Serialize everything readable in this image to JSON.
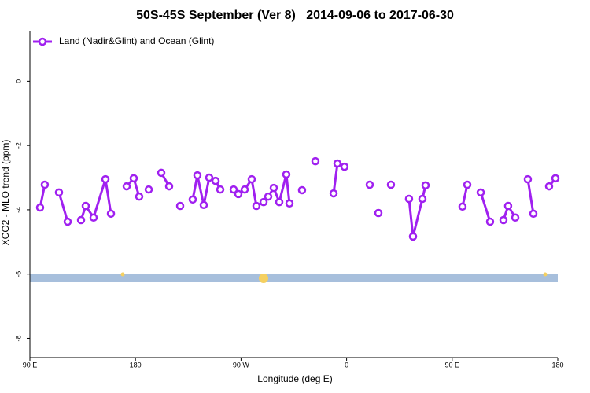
{
  "chart_data": {
    "type": "line",
    "title": "50S-45S September (Ver 8)   2014-09-06 to 2017-06-30",
    "x_label": "Longitude (deg E)",
    "y_label": "XCO2 - MLO trend (ppm)",
    "xlim": [
      90,
      540
    ],
    "ylim": [
      -8.6,
      1.55
    ],
    "xticks": [
      {
        "value": 90,
        "label": "90 E"
      },
      180,
      {
        "value": 270,
        "label": "90 W"
      },
      {
        "value": 360,
        "label": "0"
      },
      {
        "value": 450,
        "label": "90 E"
      },
      {
        "value": 540,
        "label": "180"
      }
    ],
    "yticks": [
      0,
      -2,
      -4,
      -6,
      -8
    ],
    "legend": "top-left",
    "x": [
      98.7,
      102.7,
      null,
      114.8,
      122.2,
      null,
      133.6,
      137.6,
      144.3,
      154.4,
      159.1,
      null,
      172.5,
      178.5,
      183.2,
      null,
      191.3,
      null,
      202.0,
      208.7,
      null,
      218.1,
      null,
      228.8,
      232.8,
      238.2,
      242.9,
      248.3,
      252.3,
      null,
      263.7,
      267.7,
      273.1,
      279.1,
      283.1,
      289.2,
      293.2,
      297.9,
      302.6,
      308.6,
      311.3,
      null,
      322.0,
      null,
      333.4,
      null,
      348.9,
      352.2,
      358.2,
      null,
      379.7,
      null,
      387.1,
      null,
      397.8,
      null,
      413.2,
      416.6,
      424.6,
      427.3,
      null,
      458.8,
      462.9,
      null,
      474.3,
      482.3,
      null,
      493.7,
      497.7,
      503.8,
      null,
      514.5,
      519.2,
      null,
      532.6,
      538.0
    ],
    "series": [
      {
        "name": "Land (Nadir&Glint) and Ocean (Glint)",
        "color": "#a020f0",
        "values": [
          -3.93,
          -3.22,
          null,
          -3.46,
          -4.37,
          null,
          -4.32,
          -3.88,
          -4.24,
          -3.05,
          -4.12,
          null,
          -3.27,
          -3.02,
          -3.59,
          null,
          -3.37,
          null,
          -2.85,
          -3.27,
          null,
          -3.88,
          null,
          -3.68,
          -2.93,
          -3.85,
          -3.0,
          -3.1,
          -3.37,
          null,
          -3.37,
          -3.51,
          -3.37,
          -3.05,
          -3.88,
          -3.76,
          -3.59,
          -3.32,
          -3.76,
          -2.9,
          -3.8,
          null,
          -3.39,
          null,
          -2.49,
          null,
          -3.49,
          -2.56,
          -2.66,
          null,
          -3.22,
          null,
          -4.1,
          null,
          -3.22,
          null,
          -3.66,
          -4.83,
          -3.66,
          -3.24,
          null,
          -3.9,
          -3.22,
          null,
          -3.46,
          -4.37,
          null,
          -4.32,
          -3.88,
          -4.24,
          null,
          -3.05,
          -4.12,
          null,
          -3.27,
          -3.02
        ]
      }
    ]
  }
}
